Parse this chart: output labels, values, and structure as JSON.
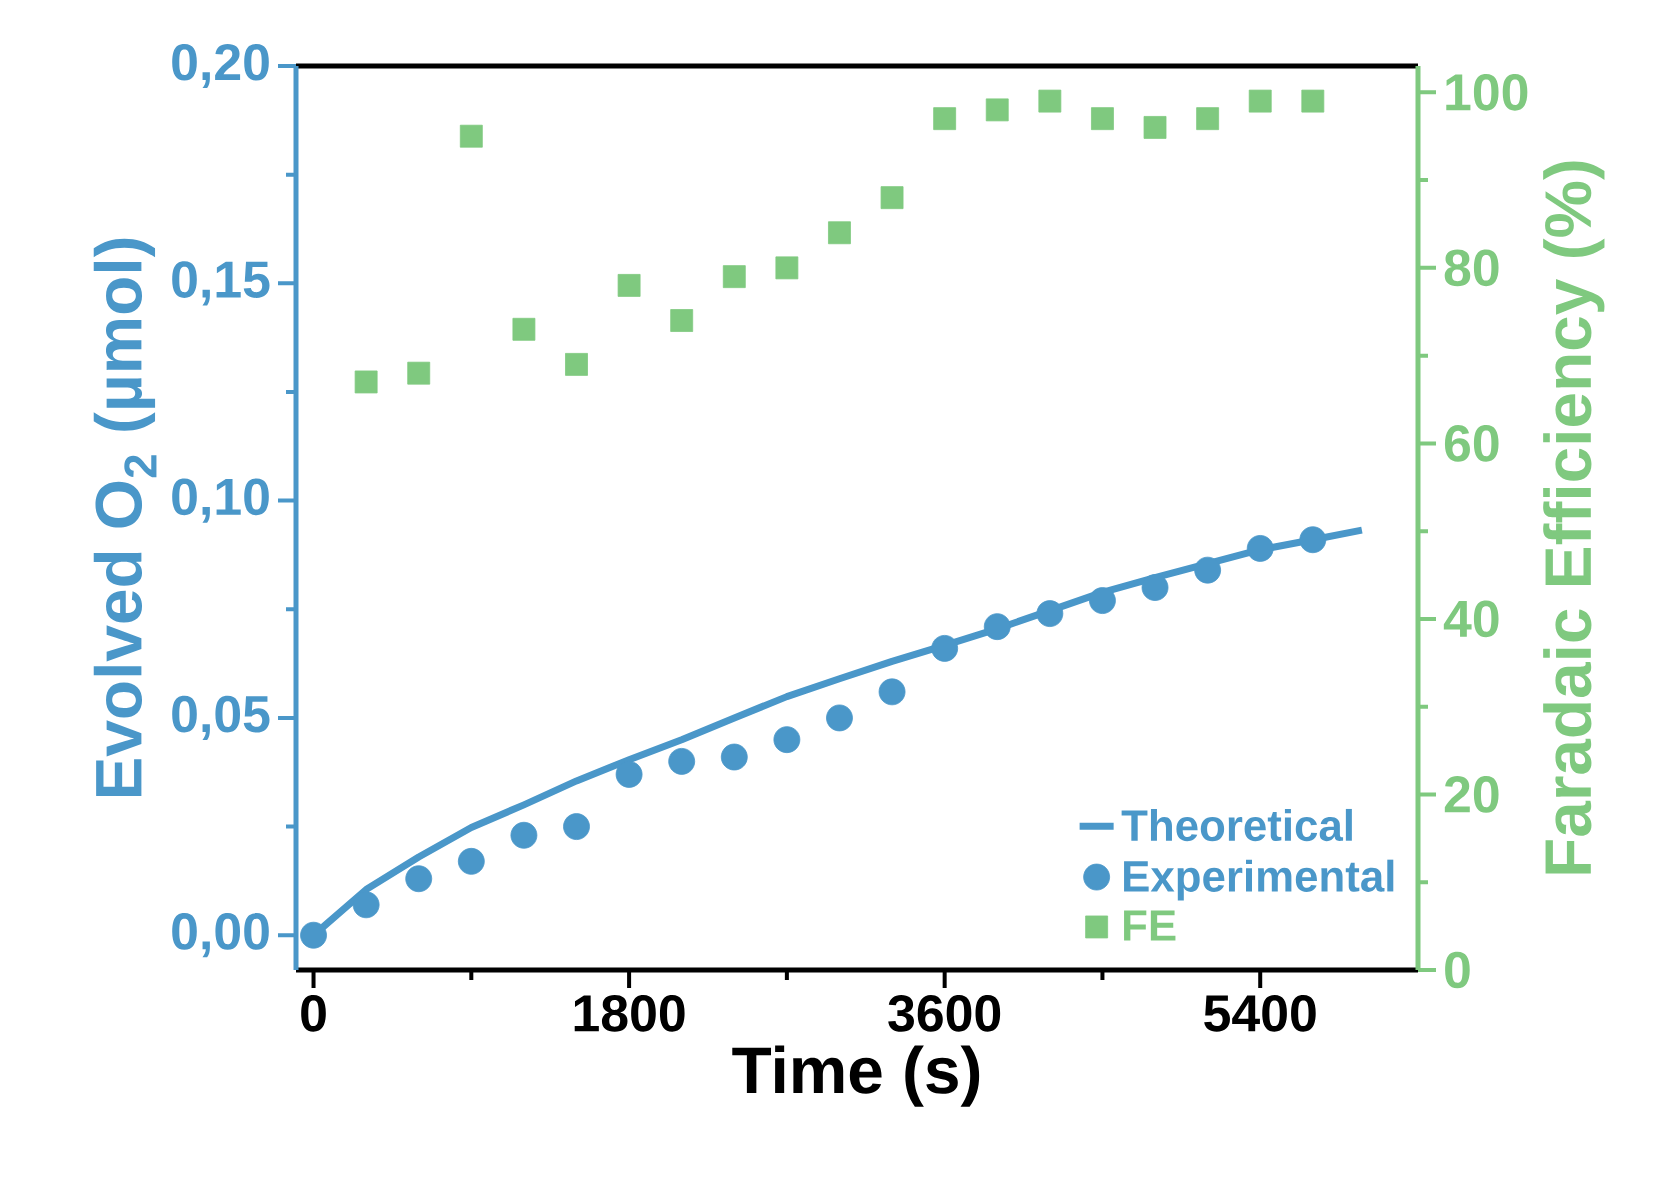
{
  "chart_data": {
    "type": "scatter",
    "xlabel": "Time (s)",
    "ylabel": "Evolved O$_{2}$ (µmol)",
    "y2label": "Faradaic Efficiency (%)",
    "xlim": [
      -100,
      6300
    ],
    "xticks": [
      0,
      1800,
      3600,
      5400
    ],
    "ylim": [
      -0.008,
      0.2
    ],
    "yticks": [
      {
        "value": 0,
        "label": "0,00"
      },
      {
        "value": 0.05,
        "label": "0,05"
      },
      {
        "value": 0.1,
        "label": "0,10"
      },
      {
        "value": 0.15,
        "label": "0,15"
      },
      {
        "value": 0.2,
        "label": "0,20"
      }
    ],
    "y2lim": [
      0,
      103
    ],
    "y2ticks": [
      0,
      20,
      40,
      60,
      80,
      100
    ],
    "legend": "bottom right",
    "series": [
      {
        "name": "Theoretical",
        "type": "line",
        "marker": "none",
        "color": "#4a97c9",
        "x": [
          0,
          300,
          600,
          900,
          1200,
          1500,
          1800,
          2100,
          2400,
          2700,
          3000,
          3300,
          3600,
          3900,
          4200,
          4500,
          4800,
          5100,
          5400,
          5700,
          5980
        ],
        "values": [
          0,
          0.0105,
          0.018,
          0.0248,
          0.03,
          0.0355,
          0.0404,
          0.045,
          0.05,
          0.0549,
          0.059,
          0.063,
          0.0667,
          0.0705,
          0.0747,
          0.0789,
          0.0823,
          0.0855,
          0.0887,
          0.091,
          0.0932
        ]
      },
      {
        "name": "Experimental",
        "marker": "circle",
        "color": "#4a97c9",
        "x": [
          0,
          300,
          600,
          900,
          1200,
          1500,
          1800,
          2100,
          2400,
          2700,
          3000,
          3300,
          3600,
          3900,
          4200,
          4500,
          4800,
          5100,
          5400,
          5700
        ],
        "values": [
          0,
          0.007,
          0.013,
          0.017,
          0.023,
          0.025,
          0.037,
          0.04,
          0.041,
          0.045,
          0.05,
          0.056,
          0.066,
          0.071,
          0.074,
          0.077,
          0.08,
          0.084,
          0.089,
          0.091
        ]
      },
      {
        "name": "FE",
        "marker": "square",
        "axis": "y2",
        "color": "#7fc97f",
        "x": [
          300,
          600,
          900,
          1200,
          1500,
          1800,
          2100,
          2400,
          2700,
          3000,
          3300,
          3600,
          3900,
          4200,
          4500,
          4800,
          5100,
          5400,
          5700
        ],
        "values": [
          67,
          68,
          95,
          73,
          69,
          78,
          74,
          79,
          80,
          84,
          88,
          97,
          98,
          99,
          97,
          96,
          97,
          99,
          99
        ]
      }
    ]
  }
}
